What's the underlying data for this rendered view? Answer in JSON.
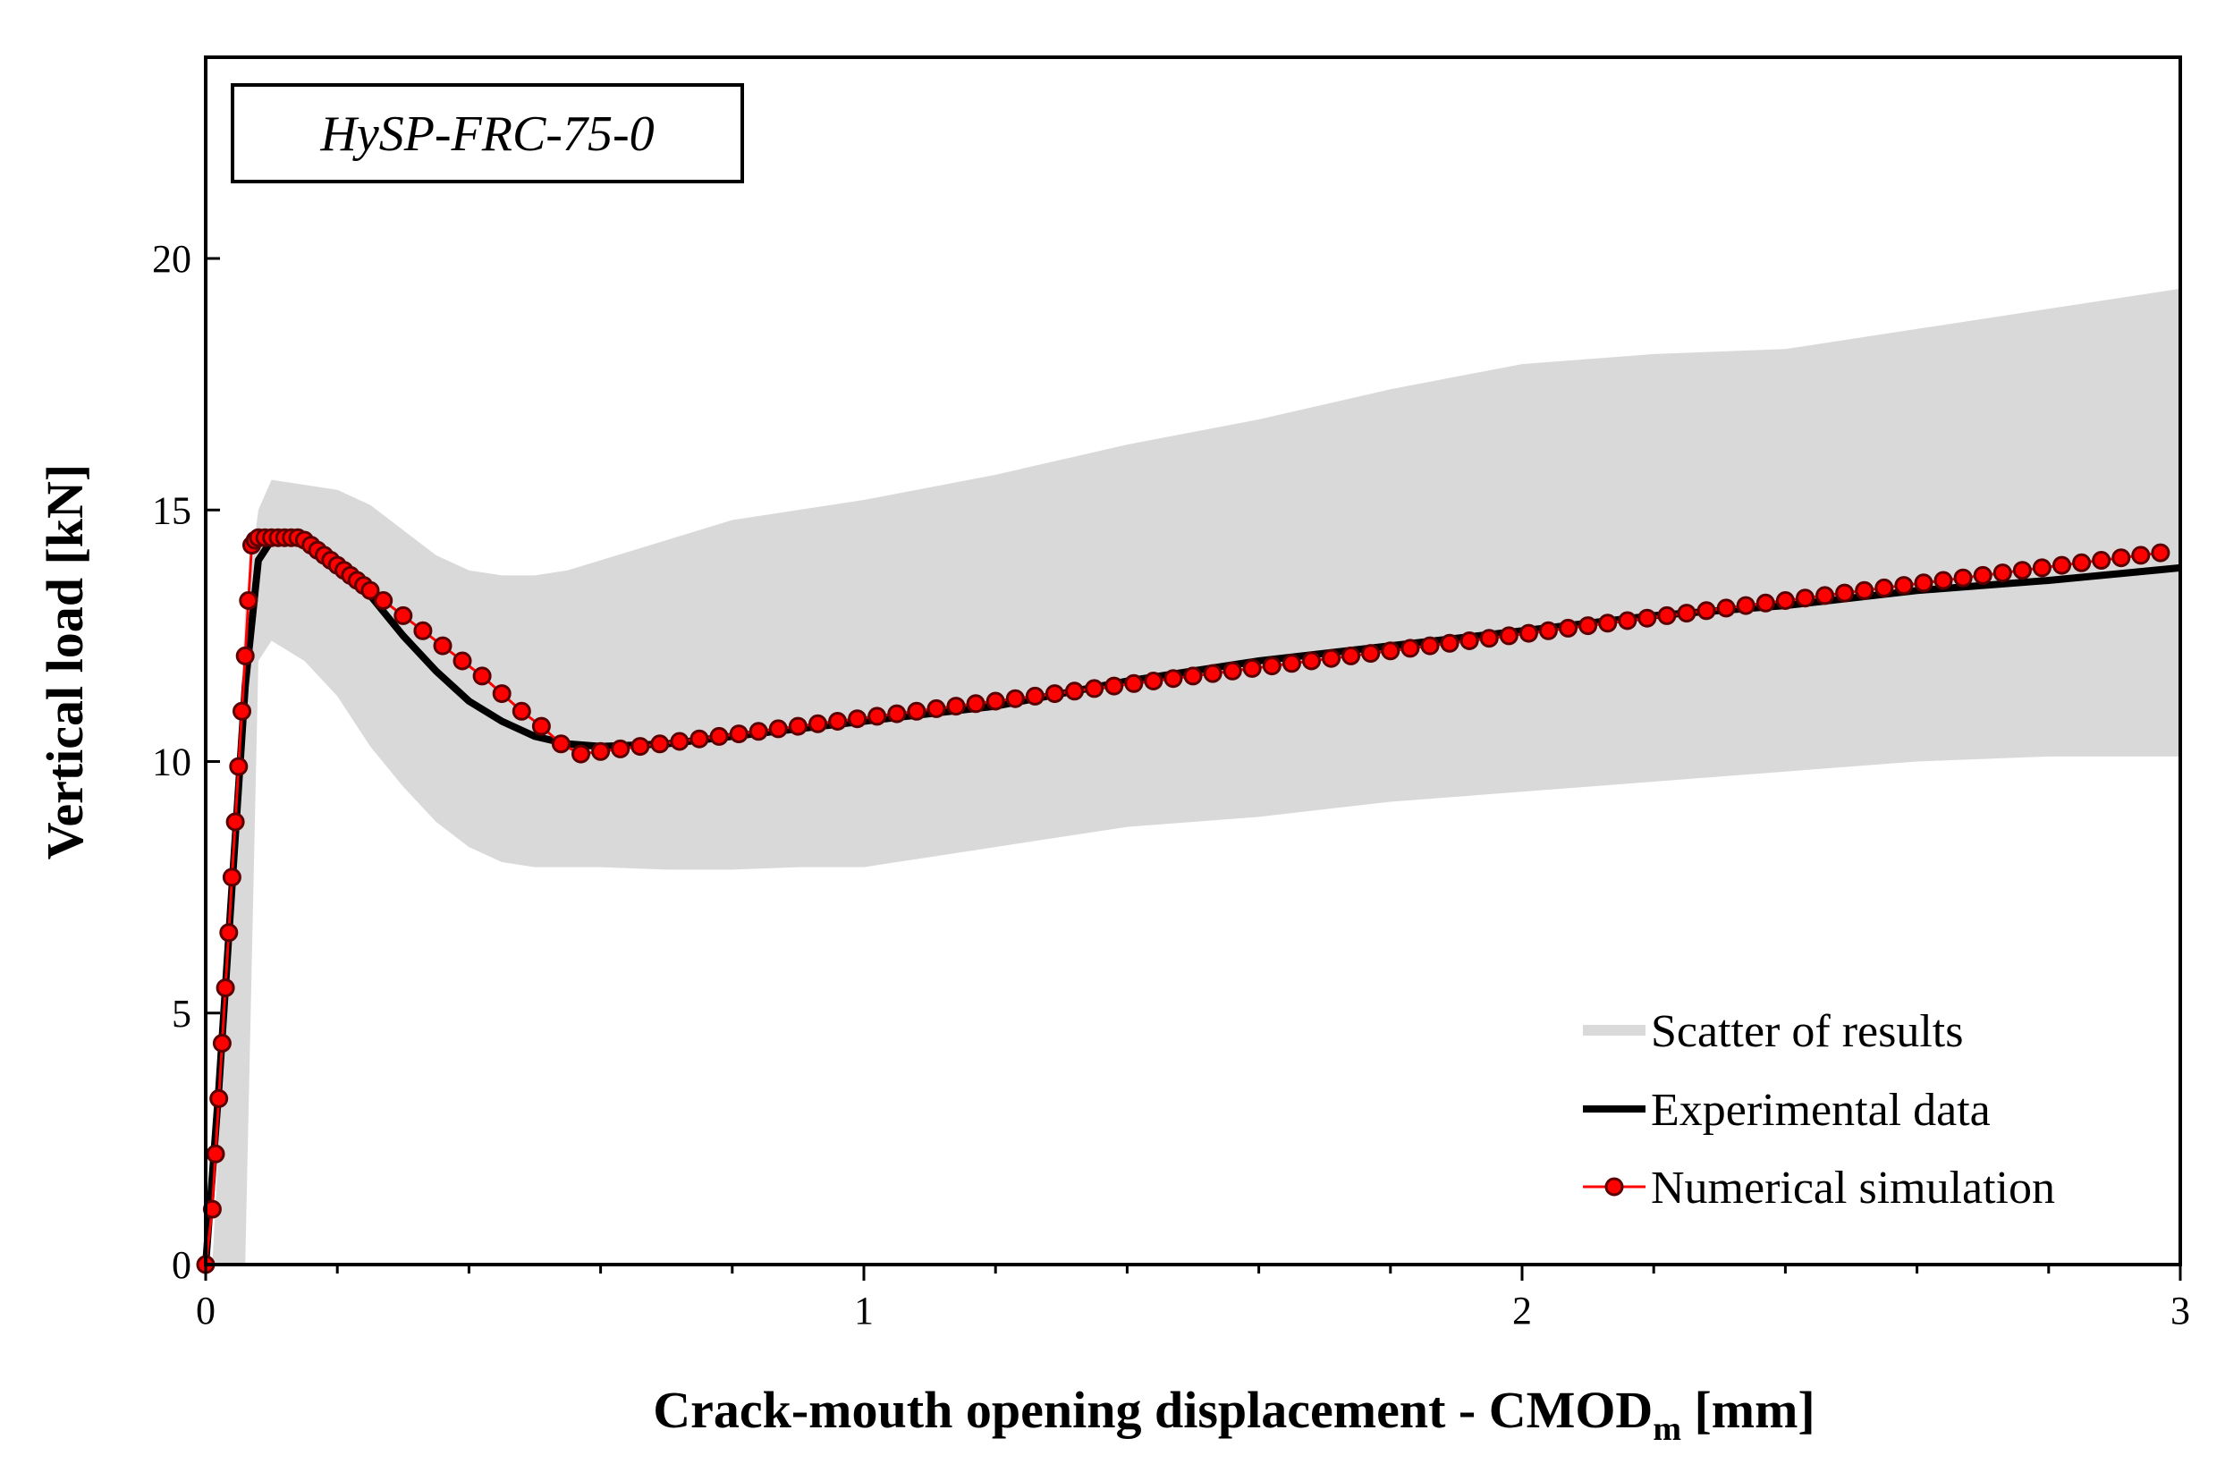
{
  "chart_data": {
    "type": "line",
    "annotation": "HySP-FRC-75-0",
    "xlabel": "Crack-mouth opening displacement - CMOD",
    "xlabel_subscript": "m",
    "xlabel_unit": " [mm]",
    "ylabel": "Vertical load [kN]",
    "xlim": [
      0,
      3
    ],
    "ylim": [
      0,
      24
    ],
    "xticks": [
      0,
      1,
      2,
      3
    ],
    "yticks": [
      0,
      5,
      10,
      15,
      20
    ],
    "xtick_labels": [
      "0",
      "1",
      "2",
      "3"
    ],
    "ytick_labels": [
      "0",
      "5",
      "10",
      "15",
      "20"
    ],
    "grid": false,
    "legend_position": "bottom-right",
    "series": [
      {
        "name": "Scatter of results",
        "kind": "band",
        "color": "#d9d9d9",
        "x": [
          0.01,
          0.03,
          0.06,
          0.08,
          0.1,
          0.15,
          0.2,
          0.25,
          0.3,
          0.35,
          0.4,
          0.45,
          0.5,
          0.55,
          0.6,
          0.7,
          0.8,
          0.9,
          1.0,
          1.2,
          1.4,
          1.6,
          1.8,
          2.0,
          2.2,
          2.4,
          2.6,
          2.8,
          3.0
        ],
        "upper": [
          0.0,
          5.0,
          13.0,
          15.0,
          15.6,
          15.5,
          15.4,
          15.1,
          14.6,
          14.1,
          13.8,
          13.7,
          13.7,
          13.8,
          14.0,
          14.4,
          14.8,
          15.0,
          15.2,
          15.7,
          16.3,
          16.8,
          17.4,
          17.9,
          18.1,
          18.2,
          18.6,
          19.0,
          19.4
        ],
        "lower": [
          0.0,
          0.0,
          0.0,
          12.0,
          12.4,
          12.0,
          11.3,
          10.3,
          9.5,
          8.8,
          8.3,
          8.0,
          7.9,
          7.9,
          7.9,
          7.85,
          7.85,
          7.9,
          7.9,
          8.3,
          8.7,
          8.9,
          9.2,
          9.4,
          9.6,
          9.8,
          10.0,
          10.1,
          10.1
        ]
      },
      {
        "name": "Experimental data",
        "kind": "line",
        "color": "#000000",
        "x": [
          0.0,
          0.02,
          0.04,
          0.06,
          0.08,
          0.1,
          0.12,
          0.15,
          0.2,
          0.25,
          0.3,
          0.35,
          0.4,
          0.45,
          0.5,
          0.55,
          0.6,
          0.7,
          0.8,
          1.0,
          1.2,
          1.4,
          1.6,
          1.8,
          2.0,
          2.2,
          2.4,
          2.6,
          2.8,
          3.0
        ],
        "y": [
          0.0,
          3.5,
          7.5,
          11.5,
          14.0,
          14.4,
          14.45,
          14.4,
          14.0,
          13.3,
          12.5,
          11.8,
          11.2,
          10.8,
          10.5,
          10.35,
          10.3,
          10.35,
          10.5,
          10.8,
          11.1,
          11.6,
          12.0,
          12.3,
          12.6,
          12.9,
          13.1,
          13.4,
          13.6,
          13.85
        ]
      },
      {
        "name": "Numerical simulation",
        "kind": "line-markers",
        "color": "#ff0000",
        "marker_edge": "#5a0000",
        "x": [
          0.0,
          0.01,
          0.015,
          0.02,
          0.025,
          0.03,
          0.035,
          0.04,
          0.045,
          0.05,
          0.055,
          0.06,
          0.065,
          0.07,
          0.075,
          0.08,
          0.09,
          0.1,
          0.11,
          0.12,
          0.13,
          0.14,
          0.15,
          0.16,
          0.17,
          0.18,
          0.19,
          0.2,
          0.21,
          0.22,
          0.23,
          0.24,
          0.25,
          0.27,
          0.3,
          0.33,
          0.36,
          0.39,
          0.42,
          0.45,
          0.48,
          0.51,
          0.54,
          0.57,
          0.6,
          0.63,
          0.66,
          0.69,
          0.72,
          0.75,
          0.78,
          0.81,
          0.84,
          0.87,
          0.9,
          0.93,
          0.96,
          0.99,
          1.02,
          1.05,
          1.08,
          1.11,
          1.14,
          1.17,
          1.2,
          1.23,
          1.26,
          1.29,
          1.32,
          1.35,
          1.38,
          1.41,
          1.44,
          1.47,
          1.5,
          1.53,
          1.56,
          1.59,
          1.62,
          1.65,
          1.68,
          1.71,
          1.74,
          1.77,
          1.8,
          1.83,
          1.86,
          1.89,
          1.92,
          1.95,
          1.98,
          2.01,
          2.04,
          2.07,
          2.1,
          2.13,
          2.16,
          2.19,
          2.22,
          2.25,
          2.28,
          2.31,
          2.34,
          2.37,
          2.4,
          2.43,
          2.46,
          2.49,
          2.52,
          2.55,
          2.58,
          2.61,
          2.64,
          2.67,
          2.7,
          2.73,
          2.76,
          2.79,
          2.82,
          2.85,
          2.88,
          2.91,
          2.94,
          2.97
        ],
        "y": [
          0.0,
          1.1,
          2.2,
          3.3,
          4.4,
          5.5,
          6.6,
          7.7,
          8.8,
          9.9,
          11.0,
          12.1,
          13.2,
          14.3,
          14.4,
          14.45,
          14.45,
          14.45,
          14.45,
          14.45,
          14.45,
          14.45,
          14.4,
          14.3,
          14.2,
          14.1,
          14.0,
          13.9,
          13.8,
          13.7,
          13.6,
          13.5,
          13.4,
          13.2,
          12.9,
          12.6,
          12.3,
          12.0,
          11.7,
          11.35,
          11.0,
          10.7,
          10.35,
          10.15,
          10.2,
          10.25,
          10.3,
          10.35,
          10.4,
          10.45,
          10.5,
          10.55,
          10.6,
          10.65,
          10.7,
          10.75,
          10.8,
          10.85,
          10.9,
          10.95,
          11.0,
          11.05,
          11.1,
          11.15,
          11.2,
          11.25,
          11.3,
          11.35,
          11.4,
          11.45,
          11.5,
          11.55,
          11.6,
          11.65,
          11.7,
          11.75,
          11.8,
          11.85,
          11.9,
          11.95,
          12.0,
          12.05,
          12.1,
          12.15,
          12.2,
          12.25,
          12.3,
          12.35,
          12.4,
          12.45,
          12.5,
          12.55,
          12.6,
          12.65,
          12.7,
          12.75,
          12.8,
          12.85,
          12.9,
          12.95,
          13.0,
          13.05,
          13.1,
          13.15,
          13.2,
          13.25,
          13.3,
          13.35,
          13.4,
          13.45,
          13.5,
          13.55,
          13.6,
          13.65,
          13.7,
          13.75,
          13.8,
          13.85,
          13.9,
          13.95,
          14.0,
          14.05,
          14.1,
          14.15
        ]
      }
    ]
  }
}
